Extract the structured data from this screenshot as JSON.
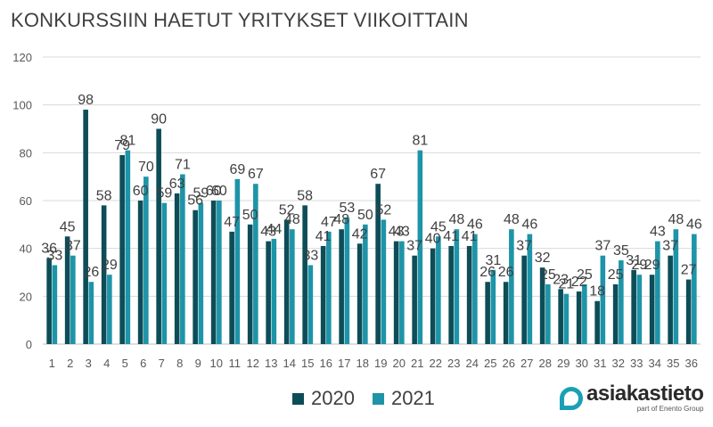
{
  "chart_data": {
    "type": "bar",
    "title": "KONKURSSIIN HAETUT YRITYKSET VIIKOITTAIN",
    "categories": [
      "1",
      "2",
      "3",
      "4",
      "5",
      "6",
      "7",
      "8",
      "9",
      "10",
      "11",
      "12",
      "13",
      "14",
      "15",
      "16",
      "17",
      "18",
      "19",
      "20",
      "21",
      "22",
      "23",
      "24",
      "25",
      "26",
      "27",
      "28",
      "29",
      "30",
      "31",
      "32",
      "33",
      "34",
      "35",
      "36"
    ],
    "series": [
      {
        "name": "2020",
        "color": "#0d4d57",
        "values": [
          36,
          45,
          98,
          58,
          79,
          60,
          90,
          63,
          56,
          60,
          47,
          50,
          43,
          52,
          58,
          41,
          48,
          42,
          67,
          43,
          37,
          40,
          41,
          41,
          26,
          26,
          37,
          32,
          23,
          22,
          18,
          25,
          31,
          29,
          37,
          27
        ]
      },
      {
        "name": "2021",
        "color": "#1e94a8",
        "values": [
          33,
          37,
          26,
          29,
          81,
          70,
          59,
          71,
          59,
          60,
          69,
          67,
          44,
          48,
          33,
          47,
          53,
          50,
          52,
          43,
          81,
          45,
          48,
          46,
          31,
          48,
          46,
          25,
          21,
          25,
          37,
          35,
          29,
          43,
          48,
          46
        ]
      }
    ],
    "ylim": [
      0,
      120
    ],
    "yticks": [
      0,
      20,
      40,
      60,
      80,
      100,
      120
    ],
    "grid": true,
    "legend": "bottom-center"
  },
  "logo": {
    "name": "asiakastieto",
    "subtitle": "part of Enento Group"
  }
}
